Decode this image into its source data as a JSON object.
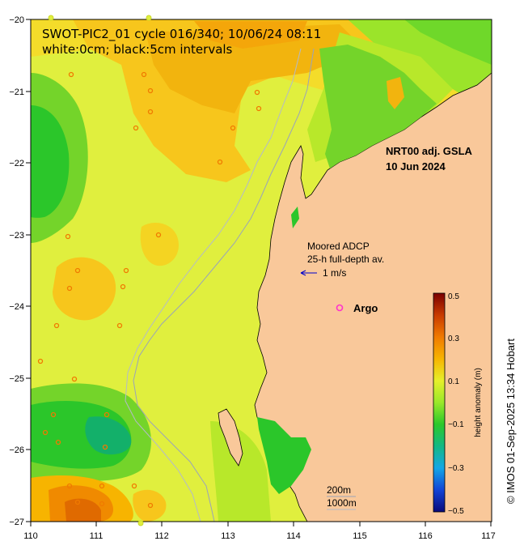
{
  "title_line1": "SWOT-PIC2_01 cycle 016/340; 10/06/24 08:11",
  "title_line2": "white:0cm; black:5cm intervals",
  "product_label": "NRT00 adj. GSLA",
  "product_date": "10 Jun 2024",
  "adcp_line1": "Moored ADCP",
  "adcp_line2": "25-h full-depth av.",
  "adcp_scale_label": "1 m/s",
  "argo_label": "Argo",
  "isobath_200": "200m",
  "isobath_1000": "1000m",
  "credit": "© IMOS 01-Sep-2025 13:34 Hobart",
  "colorbar": {
    "label": "height anomaly (m)",
    "ticks": [
      "0.5",
      "0.3",
      "0.1",
      "−0.1",
      "−0.3",
      "−0.5"
    ],
    "range": [
      -0.5,
      0.5
    ]
  },
  "axes": {
    "lon_ticks": [
      "110",
      "111",
      "112",
      "113",
      "114",
      "115",
      "116",
      "117"
    ],
    "lat_ticks": [
      "−20",
      "−21",
      "−22",
      "−23",
      "−24",
      "−25",
      "−26",
      "−27"
    ]
  },
  "colors": {
    "land": "#f9c89a",
    "argo": "#ff33cc",
    "adcp_arrow": "#0000cc",
    "isobath": "#9aa4b8"
  }
}
